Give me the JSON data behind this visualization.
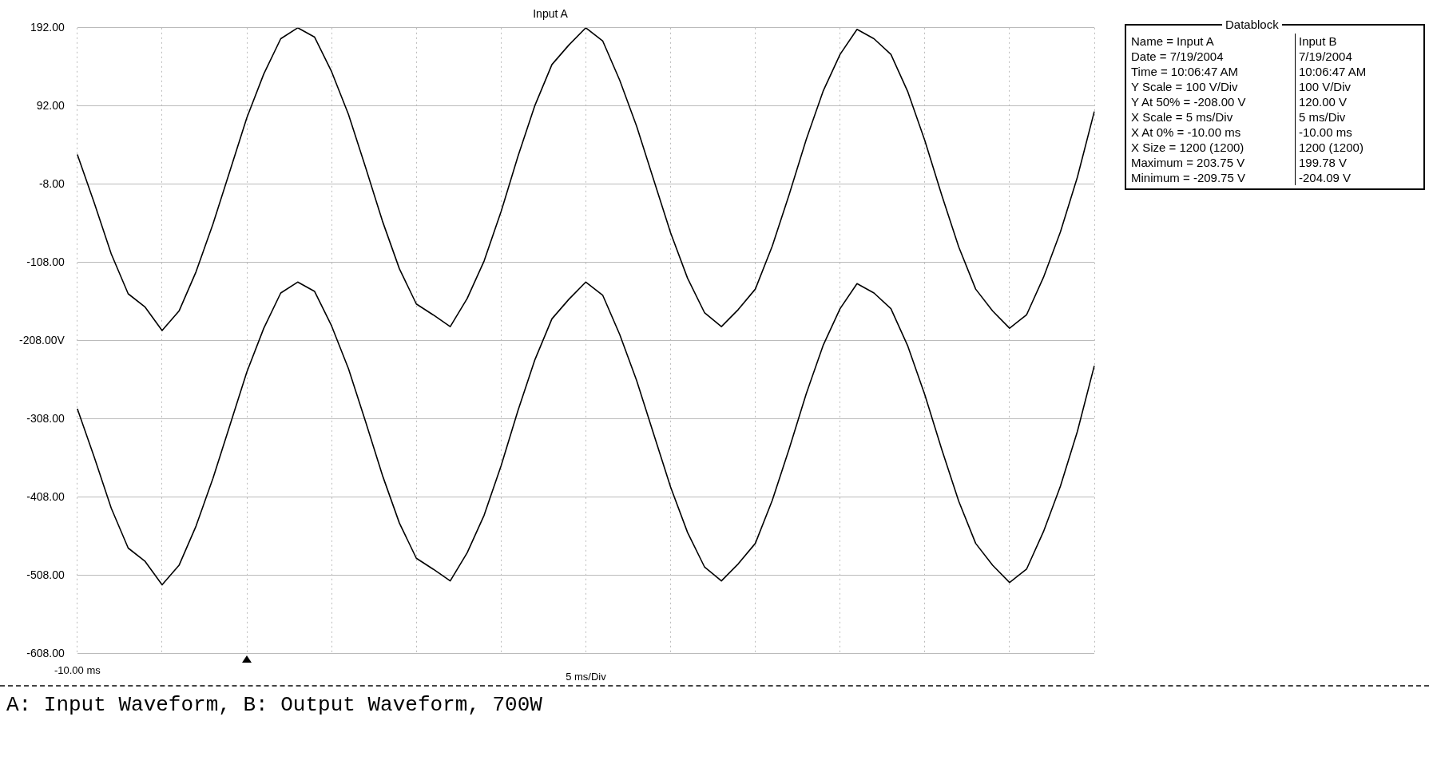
{
  "chart_data": {
    "type": "line",
    "title": "Input A",
    "xlabel": "5 ms/Div",
    "categories": [
      "-10.00 ms",
      null,
      null,
      null,
      null,
      null,
      null,
      null,
      null,
      null,
      null,
      null,
      null,
      null,
      null,
      null,
      null,
      null,
      null,
      null,
      null,
      null,
      null,
      null,
      null,
      null,
      null,
      null,
      null,
      null,
      null,
      null,
      null,
      null,
      null,
      null,
      null,
      null,
      null,
      null,
      null,
      null,
      null,
      null,
      null,
      null,
      null,
      null,
      null,
      null,
      null,
      null,
      null,
      null,
      null,
      null,
      null,
      null,
      null,
      null,
      null
    ],
    "series": [
      {
        "color": "#000000",
        "values": [
          30,
          -32,
          -97,
          -148,
          -165,
          -195,
          -170,
          -120,
          -59,
          9,
          77,
          133,
          178,
          192,
          180,
          136,
          81,
          14,
          -55,
          -116,
          -161,
          -175,
          -190,
          -154,
          -106,
          -43,
          28,
          93,
          145,
          170,
          192,
          175,
          125,
          66,
          -2,
          -70,
          -128,
          -172,
          -190,
          -168,
          -142,
          -87,
          -21,
          49,
          111,
          158,
          190,
          178,
          158,
          110,
          48,
          -22,
          -88,
          -142,
          -170,
          -192,
          -175,
          -127,
          -69,
          1,
          85
        ]
      },
      {
        "color": "#000000",
        "values": [
          -295,
          -357,
          -422,
          -473,
          -490,
          -520,
          -495,
          -445,
          -384,
          -316,
          -248,
          -192,
          -147,
          -133,
          -145,
          -189,
          -244,
          -311,
          -380,
          -441,
          -486,
          -500,
          -515,
          -479,
          -431,
          -368,
          -297,
          -232,
          -180,
          -155,
          -133,
          -150,
          -200,
          -259,
          -327,
          -395,
          -453,
          -497,
          -515,
          -493,
          -467,
          -412,
          -346,
          -276,
          -214,
          -167,
          -135,
          -147,
          -167,
          -215,
          -277,
          -347,
          -413,
          -467,
          -495,
          -517,
          -500,
          -452,
          -394,
          -324,
          -240
        ]
      }
    ],
    "ylim": [
      -608,
      192
    ],
    "yticks": [
      {
        "value": -608,
        "label": "-608.00"
      },
      {
        "value": -508,
        "label": "-508.00"
      },
      {
        "value": -408,
        "label": "-408.00"
      },
      {
        "value": -308,
        "label": "-308.00"
      },
      {
        "value": -208,
        "label": "-208.00V"
      },
      {
        "value": -108,
        "label": "-108.00"
      },
      {
        "value": -8,
        "label": "-8.00"
      },
      {
        "value": 92,
        "label": "92.00"
      },
      {
        "value": 192,
        "label": "192.00"
      }
    ],
    "grid": true,
    "legend": false,
    "marker": "none",
    "line_style": "solid",
    "annotations": [
      "Datablock",
      "Name = Input A",
      "Input B",
      "Date = 7/19/2004",
      "7/19/2004",
      "Time = 10:06:47 AM",
      "10:06:47 AM",
      "Y Scale = 100 V/Div",
      "100 V/Div",
      "Y At 50% = -208.00 V",
      "120.00 V",
      "X Scale = 5 ms/Div",
      "5 ms/Div",
      "X At 0% = -10.00 ms",
      "-10.00 ms",
      "X Size = 1200 (1200)",
      "1200 (1200)",
      "Maximum = 203.75 V",
      "199.78 V",
      "Minimum = -209.75 V",
      "-204.09 V",
      "A: Input Waveform, B: Output Waveform, 700W"
    ]
  }
}
